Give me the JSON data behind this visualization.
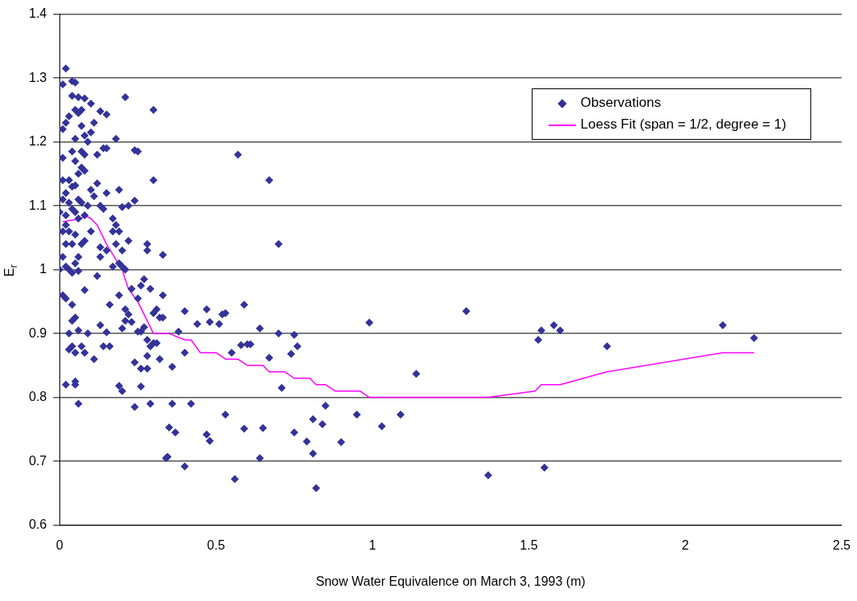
{
  "chart_data": {
    "type": "scatter",
    "xlabel": "Snow Water Equivalence on March 3, 1993 (m)",
    "ylabel": "E$_{r}$",
    "xlim": [
      0,
      2.5
    ],
    "xticks": [
      0,
      0.5,
      1,
      1.5,
      2,
      2.5
    ],
    "ylim": [
      0.6,
      1.4
    ],
    "yticks": [
      0.6,
      0.7,
      0.8,
      0.9,
      1,
      1.1,
      1.2,
      1.3,
      1.4
    ],
    "grid": "y",
    "legend": "top right",
    "series": [
      {
        "name": "Observations",
        "marker": "diamond",
        "color": "#333399",
        "x": [
          0.57,
          0.67,
          0.7,
          0.3,
          0.3,
          0.21,
          1.3,
          0.99,
          1.14,
          1.53,
          1.54,
          1.58,
          1.6,
          1.75,
          2.12,
          2.22,
          1.37,
          1.55,
          0.82,
          0.56,
          0.64,
          0.4,
          0.34,
          0.345,
          0.95,
          1.03,
          1.09,
          0.9,
          0.84,
          0.85,
          0.81,
          0.81,
          0.79,
          0.75,
          0.71,
          0.65,
          0.59,
          0.53,
          0.48,
          0.47,
          0.42,
          0.37,
          0.36,
          0.35,
          0.4,
          0.44,
          0.47,
          0.48,
          0.51,
          0.52,
          0.53,
          0.59,
          0.64,
          0.7,
          0.75,
          0.76,
          0.74,
          0.67,
          0.6,
          0.61,
          0.58,
          0.55,
          0.4,
          0.38,
          0.36,
          0.33,
          0.32,
          0.33,
          0.31,
          0.3,
          0.3,
          0.31,
          0.28,
          0.29,
          0.28,
          0.27,
          0.29,
          0.27,
          0.25,
          0.25,
          0.26,
          0.23,
          0.22,
          0.21,
          0.21,
          0.2,
          0.24,
          0.26,
          0.28,
          0.32,
          0.33,
          0.28,
          0.28,
          0.22,
          0.2,
          0.19,
          0.29,
          0.24,
          0.26,
          0.16,
          0.13,
          0.15,
          0.14,
          0.16,
          0.11,
          0.09,
          0.07,
          0.06,
          0.05,
          0.03,
          0.04,
          0.04,
          0.05,
          0.03,
          0.06,
          0.05,
          0.05,
          0.02,
          0.08,
          0.02,
          0.01,
          0.04,
          0.05,
          0.06,
          0.04,
          0.08,
          0.1,
          0.15,
          0.13,
          0.07,
          0.06,
          0.05,
          0.03,
          0.02,
          0.01,
          0.07,
          0.11,
          0.1,
          0.05,
          0.08,
          0.09,
          0.18,
          0.14,
          0.15,
          0.25,
          0.24,
          0.01,
          0.04,
          0.05,
          0.07,
          0.08,
          0.12,
          0.07,
          0.08,
          0.06,
          0.03,
          0.01,
          0.04,
          0.05,
          0.02,
          0.01,
          0.03,
          0.06,
          0.07,
          0.09,
          0.1,
          0.11,
          0.12,
          0.15,
          0.19,
          0.24,
          0.22,
          0.2,
          0.13,
          0.14,
          0,
          0.02,
          0.04,
          0.05,
          0.06,
          0.08,
          0.17,
          0.18,
          0.17,
          0.19,
          0.18,
          0.2,
          0.15,
          0.13,
          0.02,
          0.01,
          0.03,
          0.04,
          0.02,
          0.08,
          0.07,
          0.1,
          0.05,
          0.06,
          0.05,
          0.03,
          0.01,
          0.02,
          0,
          0.04,
          0.06,
          0.13,
          0.19,
          0.2,
          0.21,
          0.17,
          0.01,
          0.02,
          0.08,
          0.04,
          0.12,
          0.23,
          0.26,
          0.19
        ],
        "values": [
          1.18,
          1.14,
          1.04,
          1.25,
          1.14,
          1.27,
          0.935,
          0.917,
          0.837,
          0.89,
          0.905,
          0.913,
          0.905,
          0.88,
          0.913,
          0.893,
          0.678,
          0.69,
          0.658,
          0.672,
          0.705,
          0.692,
          0.705,
          0.707,
          0.773,
          0.755,
          0.773,
          0.73,
          0.758,
          0.787,
          0.766,
          0.712,
          0.731,
          0.745,
          0.815,
          0.752,
          0.751,
          0.773,
          0.732,
          0.742,
          0.79,
          0.745,
          0.79,
          0.753,
          0.935,
          0.915,
          0.938,
          0.918,
          0.915,
          0.93,
          0.932,
          0.945,
          0.908,
          0.9,
          0.898,
          0.88,
          0.868,
          0.862,
          0.883,
          0.883,
          0.882,
          0.87,
          0.87,
          0.903,
          0.848,
          0.96,
          0.925,
          0.925,
          0.938,
          0.932,
          0.885,
          0.885,
          0.865,
          0.88,
          0.89,
          0.985,
          0.97,
          0.91,
          0.955,
          0.903,
          0.903,
          0.918,
          0.93,
          0.938,
          0.92,
          0.908,
          0.855,
          0.845,
          0.845,
          0.86,
          1.023,
          1.04,
          1.03,
          1.045,
          0.81,
          0.818,
          0.79,
          0.785,
          0.817,
          0.945,
          0.913,
          0.902,
          0.88,
          0.88,
          0.86,
          0.9,
          0.88,
          0.905,
          0.87,
          0.875,
          0.88,
          0.92,
          0.925,
          0.9,
          0.79,
          0.82,
          0.825,
          0.82,
          0.87,
          1.315,
          1.29,
          1.295,
          1.293,
          1.27,
          1.272,
          1.268,
          1.26,
          1.243,
          1.248,
          1.25,
          1.245,
          1.25,
          1.24,
          1.23,
          1.22,
          1.225,
          1.23,
          1.215,
          1.205,
          1.21,
          1.2,
          1.205,
          1.19,
          1.19,
          1.185,
          1.187,
          1.175,
          1.185,
          1.17,
          1.185,
          1.18,
          1.18,
          1.16,
          1.155,
          1.15,
          1.14,
          1.14,
          1.13,
          1.132,
          1.12,
          1.11,
          1.105,
          1.11,
          1.105,
          1.1,
          1.125,
          1.115,
          1.135,
          1.12,
          1.125,
          1.108,
          1.1,
          1.098,
          1.1,
          1.095,
          1.09,
          1.085,
          1.095,
          1.09,
          1.08,
          1.085,
          1.08,
          1.07,
          1.06,
          1.06,
          1.04,
          1.03,
          1.03,
          1.035,
          1.07,
          1.06,
          1.06,
          1.04,
          1.04,
          1.045,
          1.04,
          1.06,
          1.055,
          1.02,
          1.01,
          1.0,
          1.02,
          1.005,
          1.0,
          0.995,
          0.998,
          1.02,
          1.01,
          1.005,
          1.0,
          1.005,
          0.96,
          0.955,
          0.968,
          0.945,
          0.99,
          0.97,
          0.975,
          0.96
        ]
      },
      {
        "name": "Loess Fit (span = 1/2, degree = 1)",
        "type": "line",
        "marker": "none",
        "line_style": "solid",
        "color": "#ff00ff",
        "x": [
          0.01,
          0.07,
          0.08,
          0.1,
          0.12,
          0.15,
          0.2,
          0.22,
          0.25,
          0.28,
          0.3,
          0.32,
          0.35,
          0.4,
          0.42,
          0.45,
          0.5,
          0.53,
          0.57,
          0.6,
          0.65,
          0.67,
          0.72,
          0.75,
          0.8,
          0.82,
          0.85,
          0.88,
          0.96,
          0.99,
          1.37,
          1.52,
          1.54,
          1.6,
          1.75,
          2.12,
          2.22
        ],
        "values": [
          1.075,
          1.08,
          1.085,
          1.08,
          1.07,
          1.04,
          1.0,
          0.97,
          0.95,
          0.92,
          0.9,
          0.9,
          0.9,
          0.89,
          0.89,
          0.87,
          0.87,
          0.86,
          0.86,
          0.85,
          0.85,
          0.84,
          0.84,
          0.83,
          0.83,
          0.82,
          0.82,
          0.81,
          0.81,
          0.8,
          0.8,
          0.81,
          0.82,
          0.82,
          0.84,
          0.87,
          0.87
        ]
      }
    ]
  }
}
